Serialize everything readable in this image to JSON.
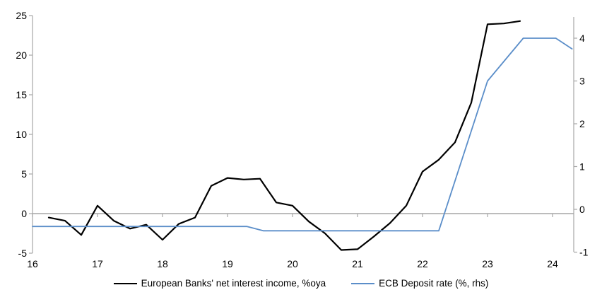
{
  "chart_data": {
    "type": "line",
    "title": "",
    "x_axis": {
      "ticks": [
        16,
        17,
        18,
        19,
        20,
        21,
        22,
        23,
        24
      ],
      "min": 16,
      "max": 24.33
    },
    "left_axis": {
      "ticks": [
        25,
        20,
        15,
        10,
        5,
        0,
        -5
      ],
      "min": -5,
      "max": 25
    },
    "right_axis": {
      "ticks": [
        4,
        3,
        2,
        1,
        0,
        -1
      ],
      "min": -1,
      "max": 4.5
    },
    "grid": "zero-line-only",
    "legend_position": "bottom",
    "series": [
      {
        "name": "European Banks' net interest income, %oya",
        "axis": "left",
        "color": "#000000",
        "stroke_width": 2.2,
        "x": [
          16.25,
          16.5,
          16.75,
          17.0,
          17.25,
          17.5,
          17.75,
          18.0,
          18.25,
          18.5,
          18.75,
          19.0,
          19.25,
          19.5,
          19.75,
          20.0,
          20.25,
          20.5,
          20.75,
          21.0,
          21.25,
          21.5,
          21.75,
          22.0,
          22.25,
          22.5,
          22.75,
          23.0,
          23.25,
          23.5
        ],
        "y": [
          -0.5,
          -0.9,
          -2.7,
          1.0,
          -0.9,
          -1.9,
          -1.4,
          -3.3,
          -1.3,
          -0.5,
          3.5,
          4.5,
          4.3,
          4.4,
          1.4,
          1.0,
          -1.0,
          -2.5,
          -4.6,
          -4.5,
          -2.9,
          -1.2,
          1.0,
          5.3,
          6.8,
          9.0,
          14.0,
          23.9,
          24.0,
          24.3
        ]
      },
      {
        "name": "ECB Deposit rate (%, rhs)",
        "axis": "right",
        "color": "#5B8EC9",
        "stroke_width": 1.8,
        "x": [
          16.0,
          19.3,
          19.55,
          22.25,
          23.0,
          23.55,
          24.05,
          24.3
        ],
        "y": [
          -0.4,
          -0.4,
          -0.5,
          -0.5,
          3.0,
          4.0,
          4.0,
          3.75
        ]
      }
    ]
  },
  "colors": {
    "axis": "#A6A6A6",
    "text": "#000000",
    "background": "#FFFFFF"
  }
}
